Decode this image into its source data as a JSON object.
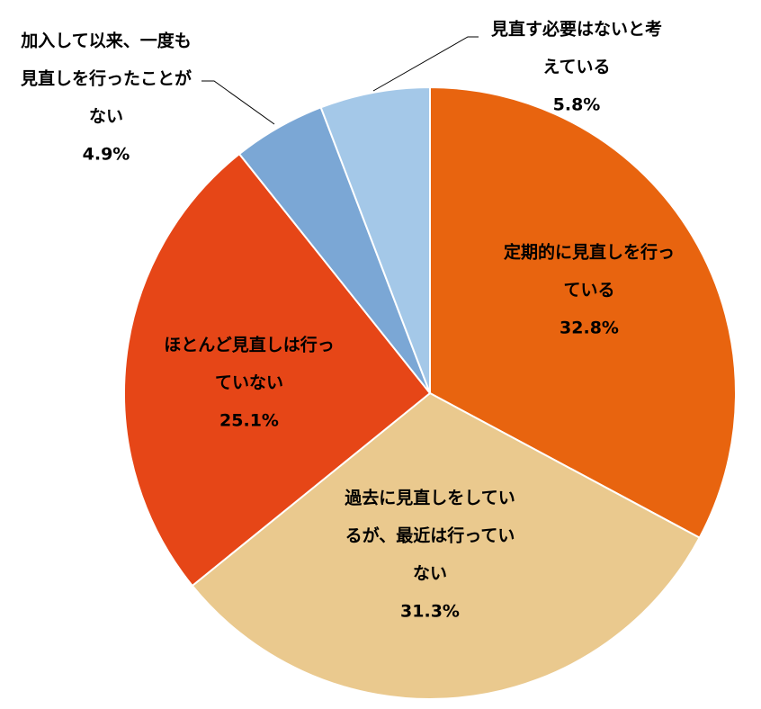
{
  "chart_data": {
    "type": "pie",
    "start": "12 o'clock, clockwise",
    "slices": [
      {
        "label": "定期的に見直しを行っている",
        "label_lines": [
          "定期的に見直しを行っ",
          "ている"
        ],
        "value": 32.8,
        "value_text": "32.8%",
        "color": "#E8640F"
      },
      {
        "label": "過去に見直しをしているが、最近は行っていない",
        "label_lines": [
          "過去に見直しをしてい",
          "るが、最近は行ってい",
          "ない"
        ],
        "value": 31.3,
        "value_text": "31.3%",
        "color": "#EAC98E"
      },
      {
        "label": "ほとんど見直しは行っていない",
        "label_lines": [
          "ほとんど見直しは行っ",
          "ていない"
        ],
        "value": 25.1,
        "value_text": "25.1%",
        "color": "#E64617"
      },
      {
        "label": "加入して以来、一度も見直しを行ったことがない",
        "label_lines": [
          "加入して以来、一度も",
          "見直しを行ったことが",
          "ない"
        ],
        "value": 4.9,
        "value_text": "4.9%",
        "color": "#7BA7D5"
      },
      {
        "label": "見直す必要はないと考えている",
        "label_lines": [
          "見直す必要はないと考",
          "えている"
        ],
        "value": 5.8,
        "value_text": "5.8%",
        "color": "#A4C8E8"
      }
    ]
  }
}
